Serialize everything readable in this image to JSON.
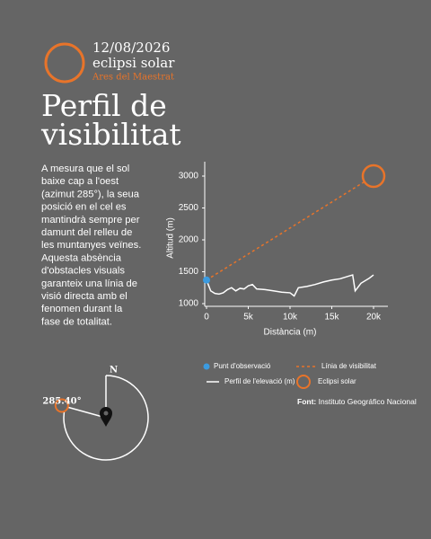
{
  "header": {
    "date": "12/08/2026",
    "event": "eclipsi solar",
    "place": "Ares del Maestrat"
  },
  "title": [
    "Perfil de",
    "visibilitat"
  ],
  "description": [
    "A mesura que el sol",
    "baixe cap a l'oest",
    "(azimut 285°), la seua",
    "posició en el cel es",
    "mantindrà sempre per",
    "damunt del relleu de",
    "les muntanyes veïnes.",
    "Aquesta absència",
    "d'obstacles visuals",
    "garanteix una línia de",
    "visió directa amb el",
    "fenomen durant la",
    "fase de totalitat."
  ],
  "compass": {
    "north": "N",
    "azimuth": {
      "value": 285.4,
      "label": "285.40°"
    }
  },
  "source": {
    "label": "Font:",
    "text": "Instituto Geográfico Nacional"
  },
  "chart_data": {
    "type": "line",
    "xlabel": "Distància (m)",
    "ylabel": "Altitud (m)",
    "xlim": [
      0,
      20000
    ],
    "ylim": [
      1000,
      3000
    ],
    "xticks": [
      0,
      {
        "value": 5000,
        "label": "5k"
      },
      {
        "value": 10000,
        "label": "10k"
      },
      {
        "value": 15000,
        "label": "15k"
      },
      {
        "value": 20000,
        "label": "20k"
      }
    ],
    "yticks": [
      1000,
      1500,
      2000,
      2500,
      3000
    ],
    "series": [
      {
        "name": "Punt d'observació",
        "color": "#3b9be0",
        "style": "point",
        "x": [
          0
        ],
        "values": [
          1370
        ]
      },
      {
        "name": "Línia de visibilitat",
        "color": "#e8742a",
        "style": "dashed",
        "x": [
          0,
          20000
        ],
        "values": [
          1370,
          3000
        ]
      },
      {
        "name": "Perfil de l'elevació (m)",
        "color": "#ffffff",
        "style": "line",
        "x": [
          0,
          500,
          1000,
          1500,
          2000,
          2500,
          3000,
          3500,
          4000,
          4500,
          5000,
          5500,
          6000,
          7000,
          8000,
          9000,
          10000,
          10500,
          11000,
          12000,
          13000,
          14000,
          15000,
          16000,
          17000,
          17500,
          17800,
          18500,
          19500,
          20000
        ],
        "values": [
          1370,
          1200,
          1160,
          1150,
          1170,
          1220,
          1250,
          1200,
          1240,
          1230,
          1280,
          1300,
          1230,
          1220,
          1200,
          1180,
          1170,
          1120,
          1250,
          1270,
          1300,
          1340,
          1370,
          1390,
          1430,
          1450,
          1200,
          1320,
          1400,
          1450
        ]
      },
      {
        "name": "Eclipsi solar",
        "color": "#e8742a",
        "style": "circle",
        "x": [
          20000
        ],
        "values": [
          3000
        ]
      }
    ]
  }
}
